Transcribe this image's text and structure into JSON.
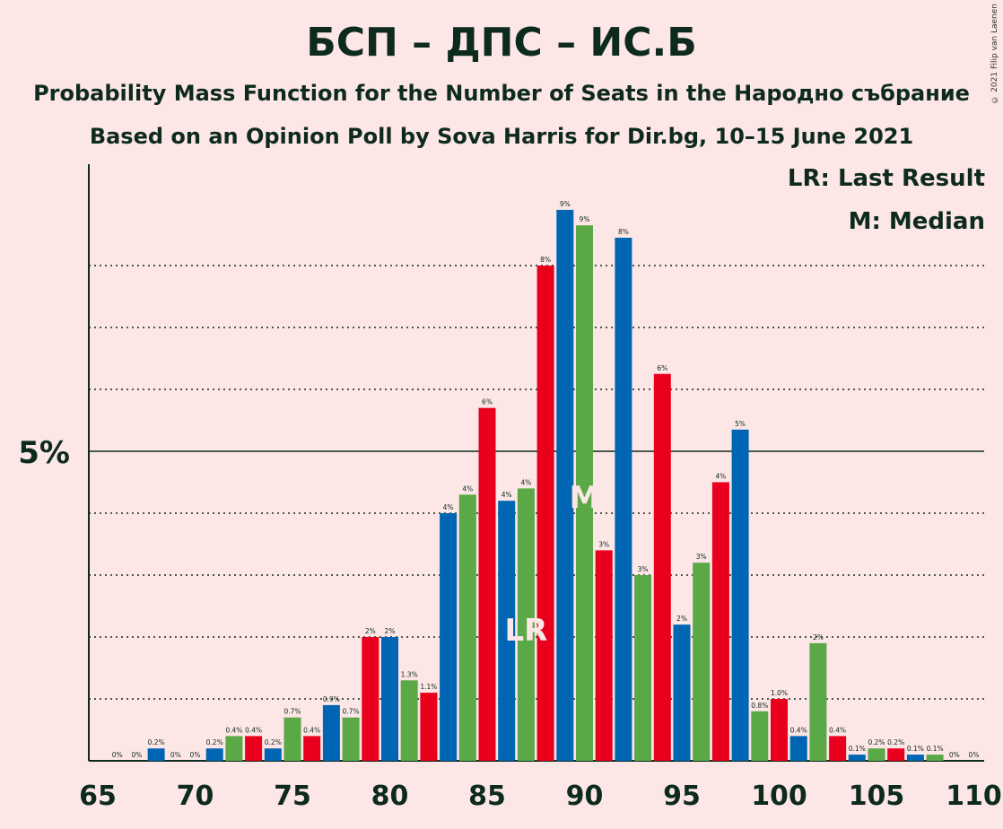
{
  "header": {
    "title": "БСП – ДПС – ИС.Б",
    "subtitle1": "Probability Mass Function for the Number of Seats in the Народно събрание",
    "subtitle2": "Based on an Opinion Poll by Sova Harris for Dir.bg, 10–15 June 2021"
  },
  "legend": {
    "lr": "LR: Last Result",
    "median": "M: Median"
  },
  "copyright": "© 2021 Filip van Laenen",
  "colors": {
    "blue": "#0066b3",
    "green": "#5aa846",
    "red": "#e8001c",
    "background": "#fde6e6",
    "text": "#0d2a1e"
  },
  "chart_data": {
    "type": "bar",
    "xlabel": "",
    "ylabel": "",
    "ylim": [
      0,
      9.5
    ],
    "y_tick_label": "5%",
    "x_ticks": [
      "65",
      "70",
      "75",
      "80",
      "85",
      "90",
      "95",
      "100",
      "105",
      "110"
    ],
    "last_result_seat": 87,
    "median_seat": 90,
    "markers": {
      "lr": "LR",
      "median": "M"
    },
    "x": [
      66,
      67,
      68,
      69,
      70,
      71,
      72,
      73,
      74,
      75,
      76,
      77,
      78,
      79,
      80,
      81,
      82,
      83,
      84,
      85,
      86,
      87,
      88,
      89,
      90,
      91,
      92,
      93,
      94,
      95,
      96,
      97,
      98,
      99,
      100,
      101,
      102,
      103,
      104,
      105,
      106,
      107,
      108,
      109,
      110
    ],
    "values": [
      0,
      0,
      0.2,
      0,
      0,
      0.2,
      0.4,
      0.4,
      0.2,
      0.7,
      0.4,
      0.9,
      0.7,
      2,
      2,
      1.3,
      1.1,
      4,
      4.3,
      5.7,
      4.2,
      4.4,
      8,
      8.9,
      8.65,
      3.4,
      8.45,
      3,
      6.25,
      2.2,
      3.2,
      4.5,
      5.35,
      0.8,
      1,
      0.4,
      1.9,
      0.4,
      0.1,
      0.2,
      0.2,
      0.1,
      0.1,
      0,
      0
    ],
    "labels": [
      "0%",
      "0%",
      "0.2%",
      "0%",
      "0%",
      "0.2%",
      "0.4%",
      "0.4%",
      "0.2%",
      "0.7%",
      "0.4%",
      "0.9%",
      "0.7%",
      "2%",
      "2%",
      "1.3%",
      "1.1%",
      "4%",
      "4%",
      "6%",
      "4%",
      "4%",
      "8%",
      "9%",
      "9%",
      "3%",
      "8%",
      "3%",
      "6%",
      "2%",
      "3%",
      "4%",
      "5%",
      "0.8%",
      "1.0%",
      "0.4%",
      "2%",
      "0.4%",
      "0.1%",
      "0.2%",
      "0.2%",
      "0.1%",
      "0.1%",
      "0%",
      "0%"
    ]
  }
}
